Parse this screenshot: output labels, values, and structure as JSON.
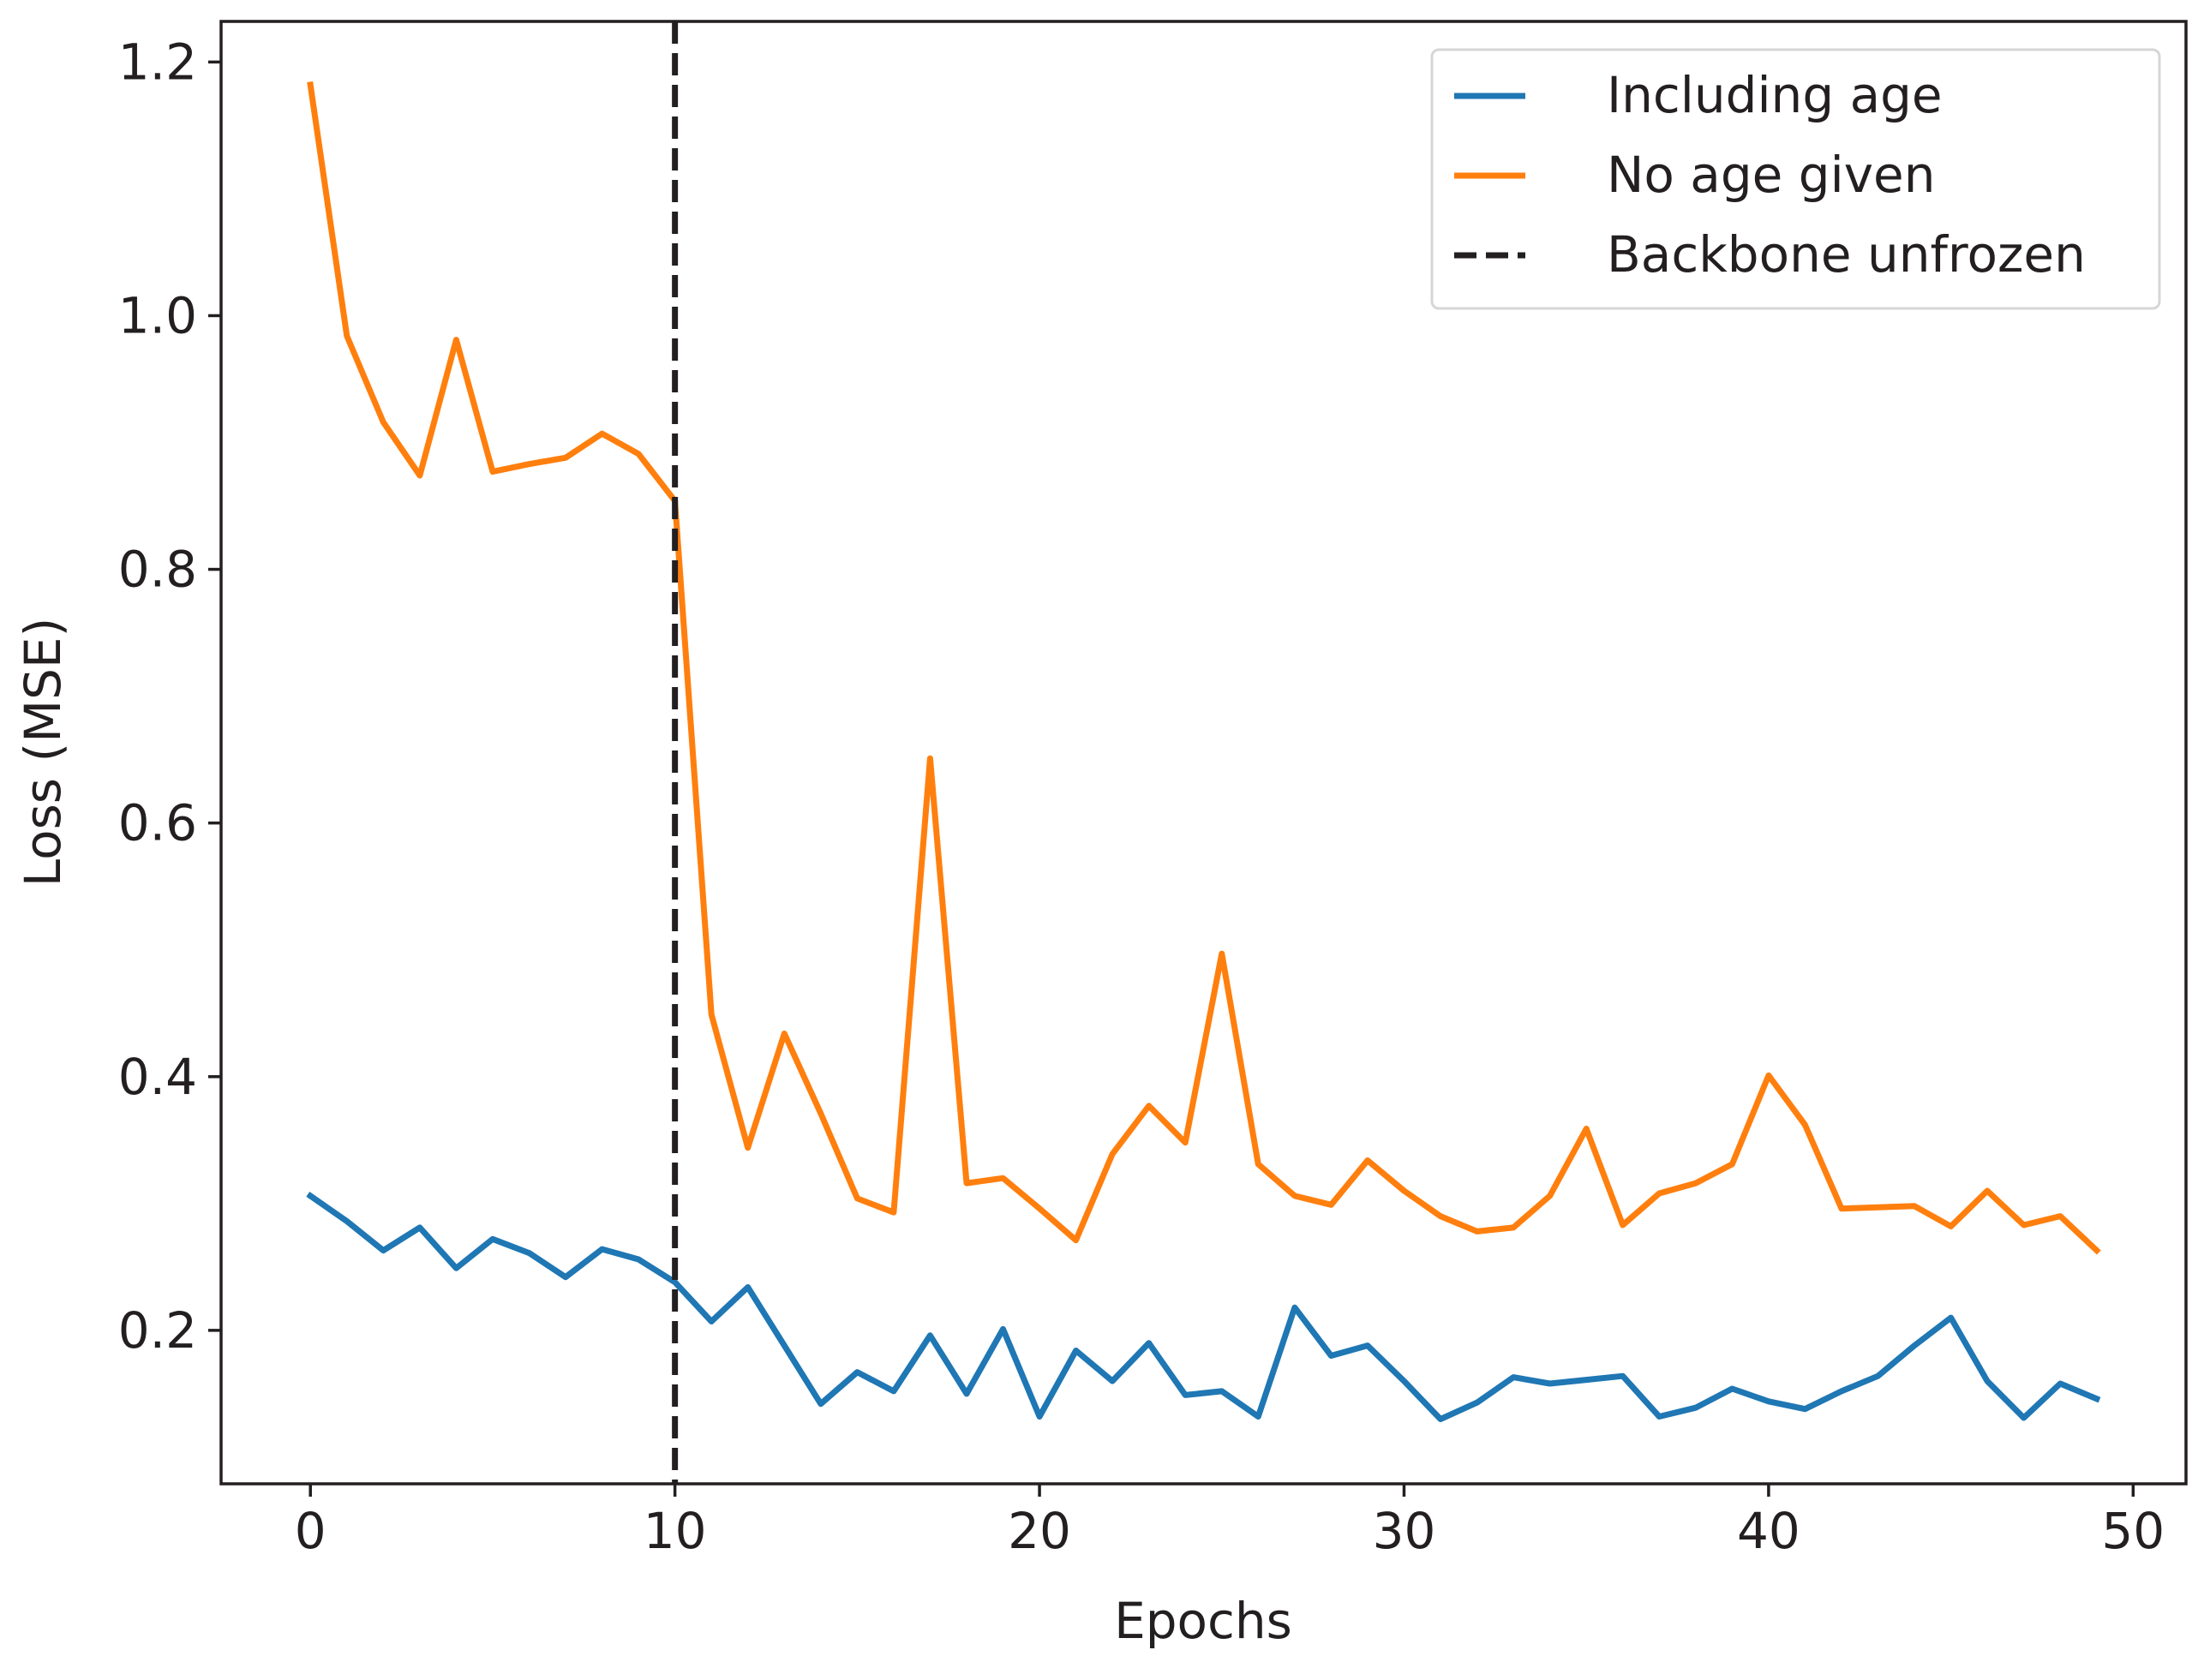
{
  "chart_data": {
    "type": "line",
    "xlabel": "Epochs",
    "ylabel": "Loss (MSE)",
    "xlim": [
      -2.45,
      51.45
    ],
    "ylim": [
      0.079,
      1.232
    ],
    "xticks": [
      0,
      10,
      20,
      30,
      40,
      50
    ],
    "xtick_labels": [
      "0",
      "10",
      "20",
      "30",
      "40",
      "50"
    ],
    "yticks": [
      0.2,
      0.4,
      0.6,
      0.8,
      1.0,
      1.2
    ],
    "ytick_labels": [
      "0.2",
      "0.4",
      "0.6",
      "0.8",
      "1.0",
      "1.2"
    ],
    "grid": false,
    "legend_position": "top-right",
    "x": [
      0,
      1,
      2,
      3,
      4,
      5,
      6,
      7,
      8,
      9,
      10,
      11,
      12,
      13,
      14,
      15,
      16,
      17,
      18,
      19,
      20,
      21,
      22,
      23,
      24,
      25,
      26,
      27,
      28,
      29,
      30,
      31,
      32,
      33,
      34,
      35,
      36,
      37,
      38,
      39,
      40,
      41,
      42,
      43,
      44,
      45,
      46,
      47,
      48,
      49
    ],
    "series": [
      {
        "name": "Including age",
        "color": "#1f77b4",
        "values": [
          0.306,
          0.286,
          0.263,
          0.281,
          0.249,
          0.272,
          0.261,
          0.242,
          0.264,
          0.256,
          0.238,
          0.207,
          0.234,
          0.188,
          0.142,
          0.167,
          0.152,
          0.196,
          0.15,
          0.201,
          0.132,
          0.184,
          0.16,
          0.19,
          0.149,
          0.152,
          0.132,
          0.218,
          0.18,
          0.188,
          0.16,
          0.13,
          0.143,
          0.163,
          0.158,
          0.161,
          0.164,
          0.132,
          0.139,
          0.154,
          0.144,
          0.138,
          0.152,
          0.164,
          0.188,
          0.21,
          0.16,
          0.131,
          0.158,
          0.146
        ]
      },
      {
        "name": "No age given",
        "color": "#ff7f0e",
        "values": [
          1.182,
          0.984,
          0.916,
          0.874,
          0.981,
          0.877,
          0.883,
          0.888,
          0.907,
          0.891,
          0.854,
          0.449,
          0.344,
          0.434,
          0.371,
          0.304,
          0.293,
          0.651,
          0.316,
          0.32,
          0.296,
          0.271,
          0.339,
          0.377,
          0.348,
          0.497,
          0.331,
          0.306,
          0.299,
          0.334,
          0.31,
          0.29,
          0.278,
          0.281,
          0.306,
          0.359,
          0.283,
          0.308,
          0.316,
          0.331,
          0.401,
          0.362,
          0.296,
          0.297,
          0.298,
          0.282,
          0.31,
          0.283,
          0.29,
          0.263
        ]
      }
    ],
    "vlines": [
      {
        "name": "Backbone unfrozen",
        "x": 10,
        "color": "#231f20",
        "style": "dashed"
      }
    ]
  }
}
